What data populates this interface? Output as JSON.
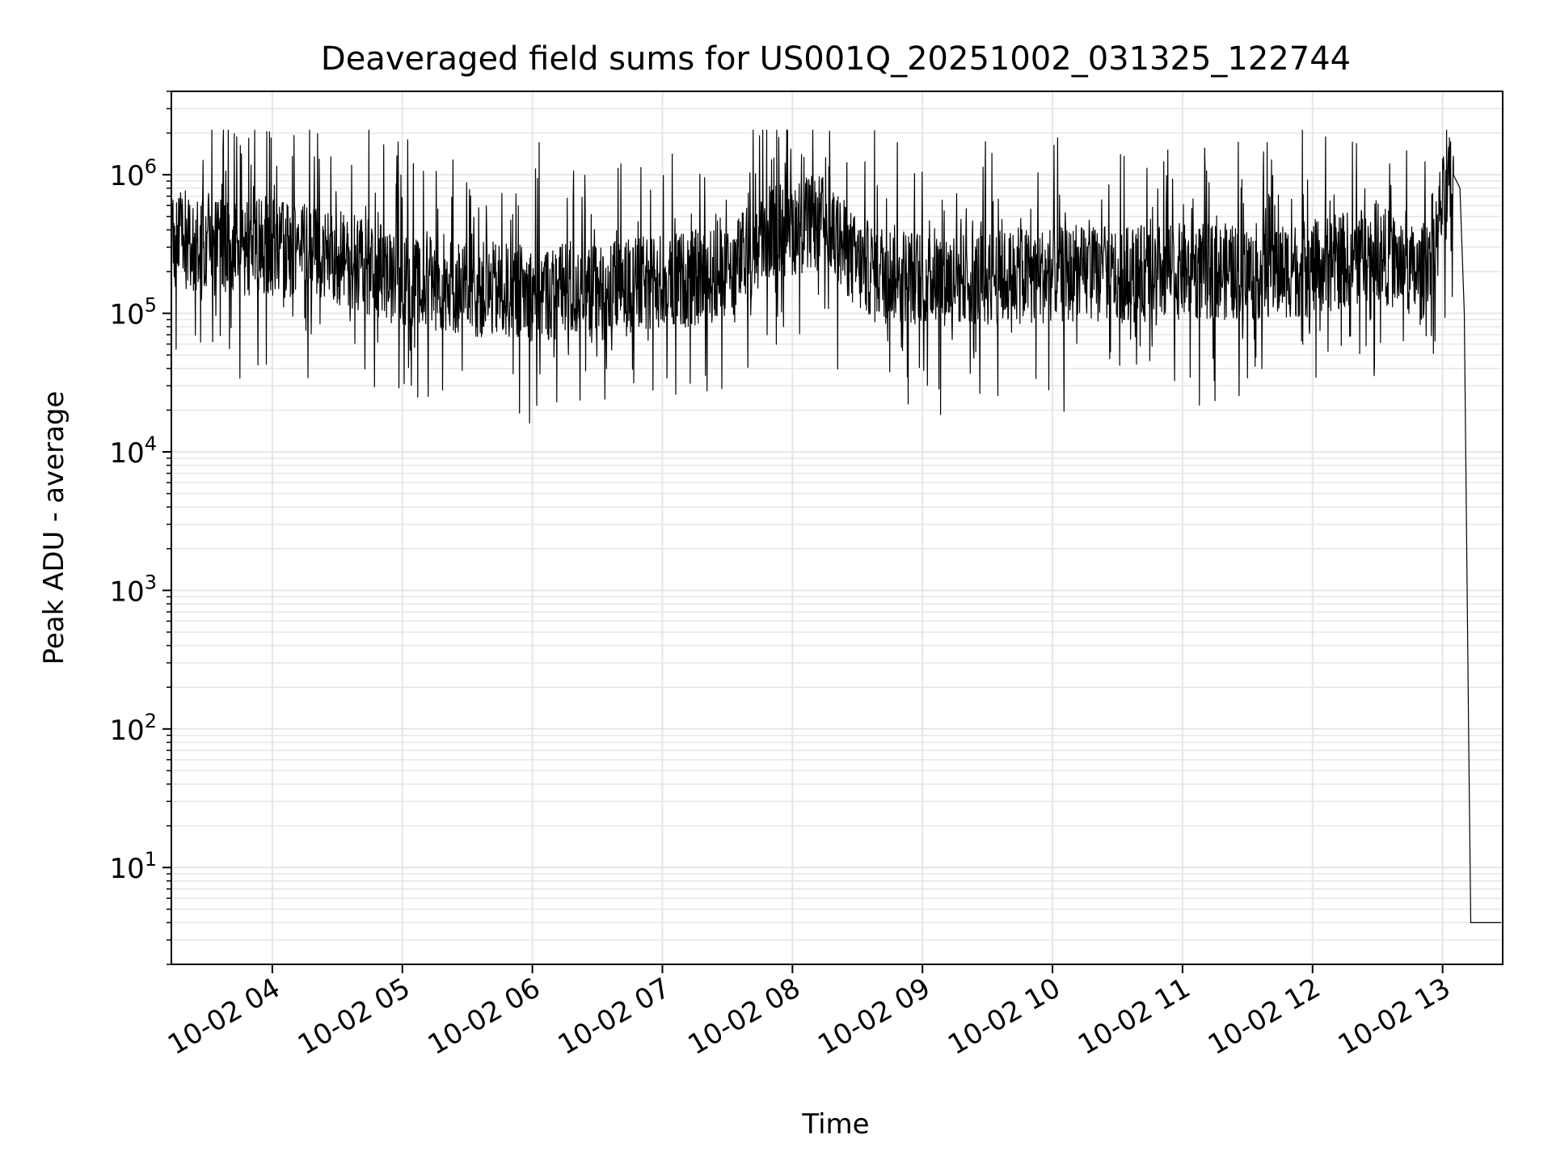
{
  "chart_data": {
    "type": "line",
    "title": "Deaveraged field sums for US001Q_20251002_031325_122744",
    "xlabel": "Time",
    "ylabel": "Peak ADU - average",
    "x_scale": "time",
    "y_scale": "log",
    "xlim": [
      "2025-10-02T03:13:25",
      "2025-10-02T13:27:44"
    ],
    "ylim": [
      2,
      4000000
    ],
    "x_tick_labels": [
      "10-02 04",
      "10-02 05",
      "10-02 06",
      "10-02 07",
      "10-02 08",
      "10-02 09",
      "10-02 10",
      "10-02 11",
      "10-02 12",
      "10-02 13"
    ],
    "x_tick_values": [
      "2025-10-02T04:00",
      "2025-10-02T05:00",
      "2025-10-02T06:00",
      "2025-10-02T07:00",
      "2025-10-02T08:00",
      "2025-10-02T09:00",
      "2025-10-02T10:00",
      "2025-10-02T11:00",
      "2025-10-02T12:00",
      "2025-10-02T13:00"
    ],
    "y_ticks": [
      {
        "value": 10,
        "base": "10",
        "exp": "1"
      },
      {
        "value": 100,
        "base": "10",
        "exp": "2"
      },
      {
        "value": 1000,
        "base": "10",
        "exp": "3"
      },
      {
        "value": 10000,
        "base": "10",
        "exp": "4"
      },
      {
        "value": 100000,
        "base": "10",
        "exp": "5"
      },
      {
        "value": 1000000,
        "base": "10",
        "exp": "6"
      }
    ],
    "grid": true,
    "line_color": "#000000",
    "grid_color": "#e6e6e6",
    "series": [
      {
        "x": [
          "2025-10-02T03:13",
          "2025-10-02T03:30",
          "2025-10-02T04:00",
          "2025-10-02T04:30",
          "2025-10-02T05:00",
          "2025-10-02T05:30",
          "2025-10-02T06:00",
          "2025-10-02T06:30",
          "2025-10-02T07:00",
          "2025-10-02T07:30",
          "2025-10-02T07:50",
          "2025-10-02T08:15",
          "2025-10-02T08:30",
          "2025-10-02T09:00",
          "2025-10-02T09:30",
          "2025-10-02T10:00",
          "2025-10-02T10:30",
          "2025-10-02T11:00",
          "2025-10-02T11:30",
          "2025-10-02T12:00",
          "2025-10-02T12:30",
          "2025-10-02T12:50",
          "2025-10-02T13:00",
          "2025-10-02T13:05",
          "2025-10-02T13:08",
          "2025-10-02T13:10",
          "2025-10-02T13:12",
          "2025-10-02T13:13",
          "2025-10-02T13:27"
        ],
        "y": [
          350000,
          300000,
          300000,
          250000,
          180000,
          150000,
          140000,
          140000,
          170000,
          190000,
          400000,
          450000,
          220000,
          180000,
          180000,
          190000,
          190000,
          200000,
          200000,
          210000,
          280000,
          180000,
          600000,
          1000000,
          800000,
          100000,
          100,
          4,
          4
        ]
      }
    ]
  }
}
